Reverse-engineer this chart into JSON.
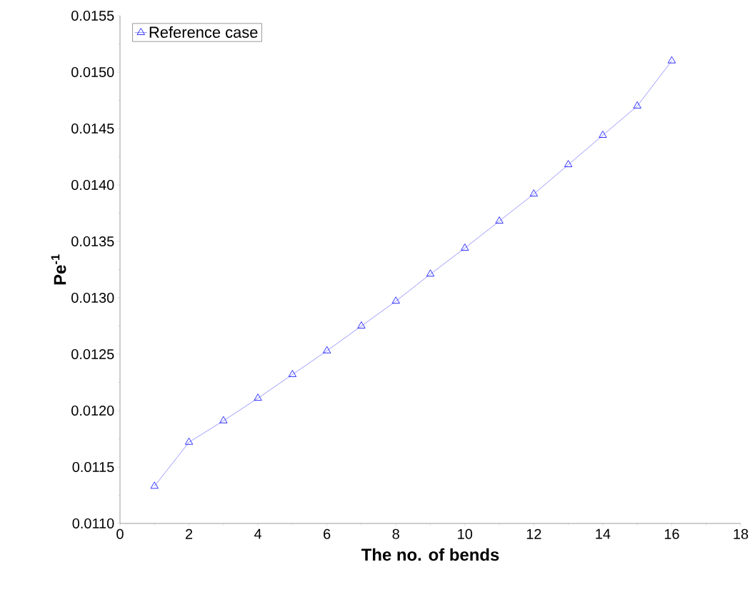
{
  "chart_data": {
    "type": "line",
    "xlabel": "The no. of bends",
    "ylabel": "Pe$^{-1}$",
    "x": [
      1,
      2,
      3,
      4,
      5,
      6,
      7,
      8,
      9,
      10,
      11,
      12,
      13,
      14,
      15,
      16
    ],
    "series": [
      {
        "name": "Reference case",
        "color": "#0000ff",
        "values": [
          0.01133,
          0.01172,
          0.01191,
          0.01211,
          0.01232,
          0.01253,
          0.01275,
          0.01297,
          0.01321,
          0.01344,
          0.01368,
          0.01392,
          0.01418,
          0.01444,
          0.0147,
          0.0151
        ]
      }
    ],
    "xlim": [
      0,
      18
    ],
    "xticks": [
      0,
      2,
      4,
      6,
      8,
      10,
      12,
      14,
      16,
      18
    ],
    "ylim": [
      0.011,
      0.0155
    ],
    "yticks": [
      {
        "value": 0.011,
        "label": "0.0110"
      },
      {
        "value": 0.0115,
        "label": "0.0115"
      },
      {
        "value": 0.012,
        "label": "0.0120"
      },
      {
        "value": 0.0125,
        "label": "0.0125"
      },
      {
        "value": 0.013,
        "label": "0.0130"
      },
      {
        "value": 0.0135,
        "label": "0.0135"
      },
      {
        "value": 0.014,
        "label": "0.0140"
      },
      {
        "value": 0.0145,
        "label": "0.0145"
      },
      {
        "value": 0.015,
        "label": "0.0150"
      },
      {
        "value": 0.0155,
        "label": "0.0155"
      }
    ],
    "legend": "top left",
    "marker": "triangle",
    "line_style": "solid",
    "grid": false
  }
}
